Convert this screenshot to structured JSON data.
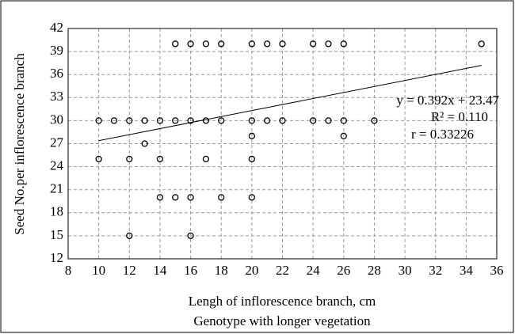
{
  "chart_data": {
    "type": "scatter",
    "y_label": "Seed No.per inflorescence branch",
    "x_label": "Lengh of inflorescence branch, cm",
    "subtitle": "Genotype with longer vegetation",
    "annotations": [
      "y = 0.392x + 23.47",
      "R² = 0.110",
      "r = 0.33226"
    ],
    "x": [
      15,
      16,
      17,
      18,
      20,
      21,
      22,
      24,
      25,
      26,
      35,
      10,
      11,
      12,
      13,
      14,
      15,
      16,
      17,
      18,
      20,
      21,
      22,
      24,
      25,
      26,
      28,
      20,
      26,
      13,
      10,
      12,
      14,
      17,
      20,
      14,
      15,
      16,
      18,
      20,
      12,
      16
    ],
    "y": [
      40,
      40,
      40,
      40,
      40,
      40,
      40,
      40,
      40,
      40,
      40,
      30,
      30,
      30,
      30,
      30,
      30,
      30,
      30,
      30,
      30,
      30,
      30,
      30,
      30,
      30,
      30,
      28,
      28,
      27,
      25,
      25,
      25,
      25,
      25,
      20,
      20,
      20,
      20,
      20,
      15,
      15
    ],
    "color": "#000000",
    "trendline": {
      "x": [
        10,
        35
      ],
      "y": [
        27.39,
        37.19
      ]
    },
    "xlim": [
      8,
      36
    ],
    "xticks": [
      8,
      10,
      12,
      14,
      16,
      18,
      20,
      22,
      24,
      26,
      28,
      30,
      32,
      34,
      36
    ],
    "ylim": [
      12,
      42
    ],
    "yticks": [
      12,
      15,
      18,
      21,
      24,
      27,
      30,
      33,
      36,
      39,
      42
    ],
    "grid": true
  }
}
